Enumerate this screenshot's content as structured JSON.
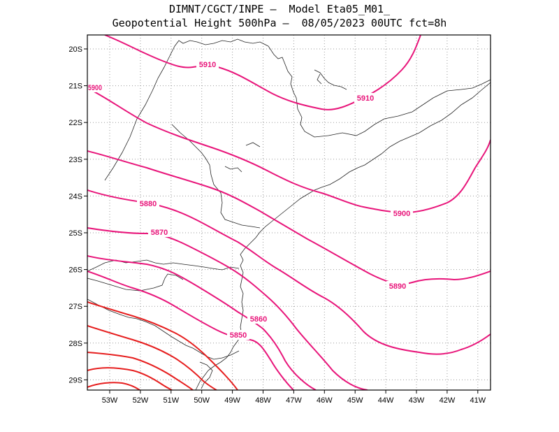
{
  "title_line1": "DIMNT/CGCT/INPE –  Model Eta05_M01_",
  "title_line2": "Geopotential Height 500hPa –  08/05/2023 00UTC fct=8h",
  "lon_ticks": [
    "53W",
    "52W",
    "51W",
    "50W",
    "49W",
    "48W",
    "47W",
    "46W",
    "45W",
    "44W",
    "43W",
    "42W",
    "41W"
  ],
  "lat_ticks": [
    "20S",
    "21S",
    "22S",
    "23S",
    "24S",
    "25S",
    "26S",
    "27S",
    "28S",
    "29S"
  ],
  "contour_labels": [
    "5910",
    "5910",
    "5900",
    "5900",
    "5890",
    "5880",
    "5870",
    "5860",
    "5850"
  ],
  "colors": {
    "magenta": "#e8157a",
    "red": "#e61e1e",
    "grid": "#9a9a9a",
    "coast": "#222222"
  }
}
